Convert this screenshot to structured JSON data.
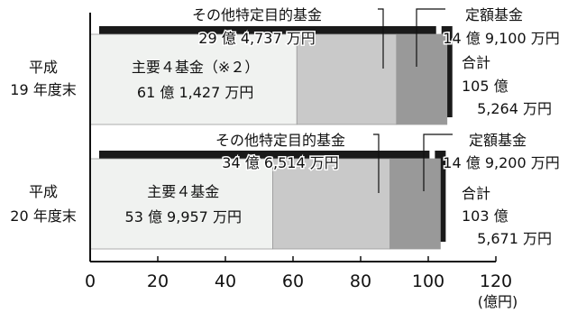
{
  "chart_data": {
    "type": "bar",
    "orientation": "horizontal",
    "stacked": true,
    "x_unit": "(億円)",
    "xlim": [
      0,
      120
    ],
    "x_ticks": [
      "0",
      "20",
      "40",
      "60",
      "80",
      "100",
      "120"
    ],
    "grid": false,
    "bars": [
      {
        "label_line1": "平成",
        "label_line2": "19 年度末",
        "segments": [
          {
            "label": "主要４基金（※２）",
            "value_text": "61 億 1,427 万円",
            "value": 61.1427,
            "color": "#f0f2f0"
          },
          {
            "label": "その他特定目的基金",
            "value_text": "29 億 4,737 万円",
            "value": 29.4737,
            "color": "#c9c9c9"
          },
          {
            "label": "定額基金",
            "value_text": "14 億 9,100 万円",
            "value": 14.91,
            "color": "#999999"
          }
        ],
        "total_label": "合計",
        "total_line1": "105 億",
        "total_line2": "5,264 万円",
        "total": 105.5264
      },
      {
        "label_line1": "平成",
        "label_line2": "20 年度末",
        "segments": [
          {
            "label": "主要４基金",
            "value_text": "53 億 9,957 万円",
            "value": 53.9957,
            "color": "#f0f2f0"
          },
          {
            "label": "その他特定目的基金",
            "value_text": "34 億 6,514 万円",
            "value": 34.6514,
            "color": "#c9c9c9"
          },
          {
            "label": "定額基金",
            "value_text": "14 億 9,200 万円",
            "value": 14.92,
            "color": "#999999"
          }
        ],
        "total_label": "合計",
        "total_line1": "103 億",
        "total_line2": "5,671 万円",
        "total": 103.5671
      }
    ]
  }
}
